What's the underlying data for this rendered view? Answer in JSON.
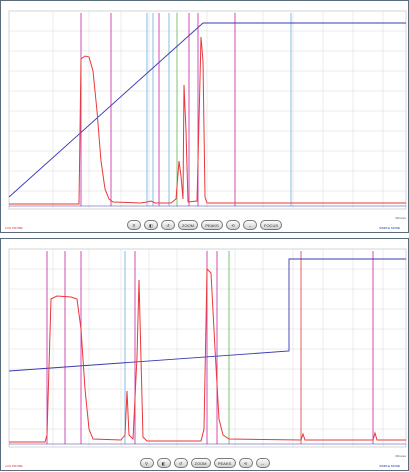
{
  "colors": {
    "panel_border": "#5a6b7a",
    "grid": "#d8d8d8",
    "signal": "#e8383b",
    "gradient_line": "#3a3ab0",
    "marker_magenta": "#d24fb0",
    "marker_cyan": "#7fc2e8",
    "marker_green": "#7ac47a",
    "marker_red": "#e06060"
  },
  "panels": [
    {
      "id": "top",
      "toolbar": [
        "⚲",
        "◧",
        "↺",
        "ZOOM",
        "PEAKS",
        "⟲",
        "↔",
        "FOCUS"
      ],
      "footer_left": "LOG PROBE",
      "footer_right": "SIMPLE MODE",
      "corner_label": "Minutes"
    },
    {
      "id": "bottom",
      "toolbar": [
        "⚲",
        "◧",
        "↺",
        "ZOOM",
        "PEAKS",
        "⟲",
        "↔"
      ],
      "footer_left": "LOG PROBE",
      "footer_right": "SIMPLE MODE",
      "corner_label": "Minutes"
    }
  ]
}
